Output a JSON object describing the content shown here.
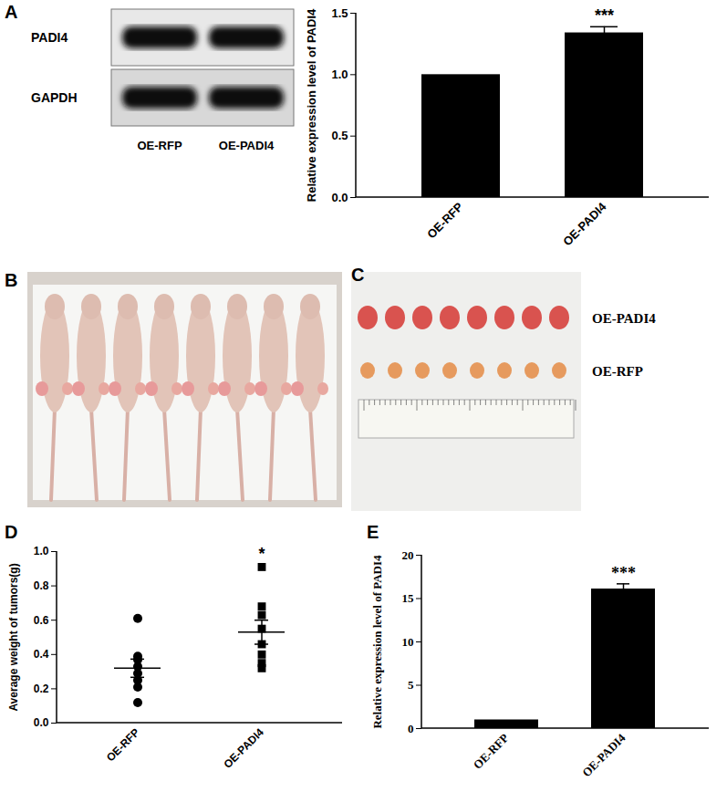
{
  "chart_data": [
    {
      "panel": "A",
      "type": "bar",
      "y_label": "Relative expression level of PADI4",
      "categories": [
        "OE-RFP",
        "OE-PADI4"
      ],
      "values": [
        1.0,
        1.34
      ],
      "errors": [
        0,
        0.05
      ],
      "color": "#000000",
      "ylim": [
        0,
        1.5
      ],
      "yticks": [
        {
          "value": 0,
          "label": "0.0"
        },
        {
          "value": 0.5,
          "label": "0.5"
        },
        {
          "value": 1,
          "label": "1.0"
        },
        {
          "value": 1.5,
          "label": "1.5"
        }
      ],
      "annotations": [
        {
          "category": "OE-PADI4",
          "text": "***"
        }
      ]
    },
    {
      "panel": "D",
      "type": "scatter",
      "y_label": "Average weight of tumors(g)",
      "series": [
        {
          "name": "OE-RFP",
          "marker": "circle",
          "color": "#000000",
          "values": [
            0.61,
            0.39,
            0.37,
            0.33,
            0.29,
            0.25,
            0.21,
            0.12
          ],
          "mean": 0.32,
          "sem": 0.053
        },
        {
          "name": "OE-PADI4",
          "marker": "square",
          "color": "#000000",
          "values": [
            0.91,
            0.68,
            0.63,
            0.55,
            0.46,
            0.4,
            0.35,
            0.32
          ],
          "mean": 0.53,
          "sem": 0.07
        }
      ],
      "ylim": [
        0,
        1.0
      ],
      "yticks": [
        {
          "value": 0,
          "label": "0.0"
        },
        {
          "value": 0.2,
          "label": "0.2"
        },
        {
          "value": 0.4,
          "label": "0.4"
        },
        {
          "value": 0.6,
          "label": "0.6"
        },
        {
          "value": 0.8,
          "label": "0.8"
        },
        {
          "value": 1,
          "label": "1.0"
        }
      ],
      "annotations": [
        {
          "category": "OE-PADI4",
          "text": "*"
        }
      ]
    },
    {
      "panel": "E",
      "type": "bar",
      "y_label": "Relative expression level of PADI4",
      "categories": [
        "OE-RFP",
        "OE-PADI4"
      ],
      "values": [
        1,
        16.1
      ],
      "errors": [
        0,
        0.6
      ],
      "color": "#000000",
      "ylim": [
        0,
        20
      ],
      "yticks": [
        0,
        5,
        10,
        15,
        20
      ],
      "annotations": [
        {
          "category": "OE-PADI4",
          "text": "***"
        }
      ]
    }
  ],
  "figure": {
    "blot": {
      "panel": "A",
      "bands": [
        "PADI4",
        "GAPDH"
      ],
      "lanes": [
        "OE-RFP",
        "OE-PADI4"
      ]
    },
    "photos": [
      {
        "panel": "B"
      },
      {
        "panel": "C",
        "row_labels": [
          "OE-PADI4",
          "OE-RFP"
        ]
      }
    ]
  }
}
